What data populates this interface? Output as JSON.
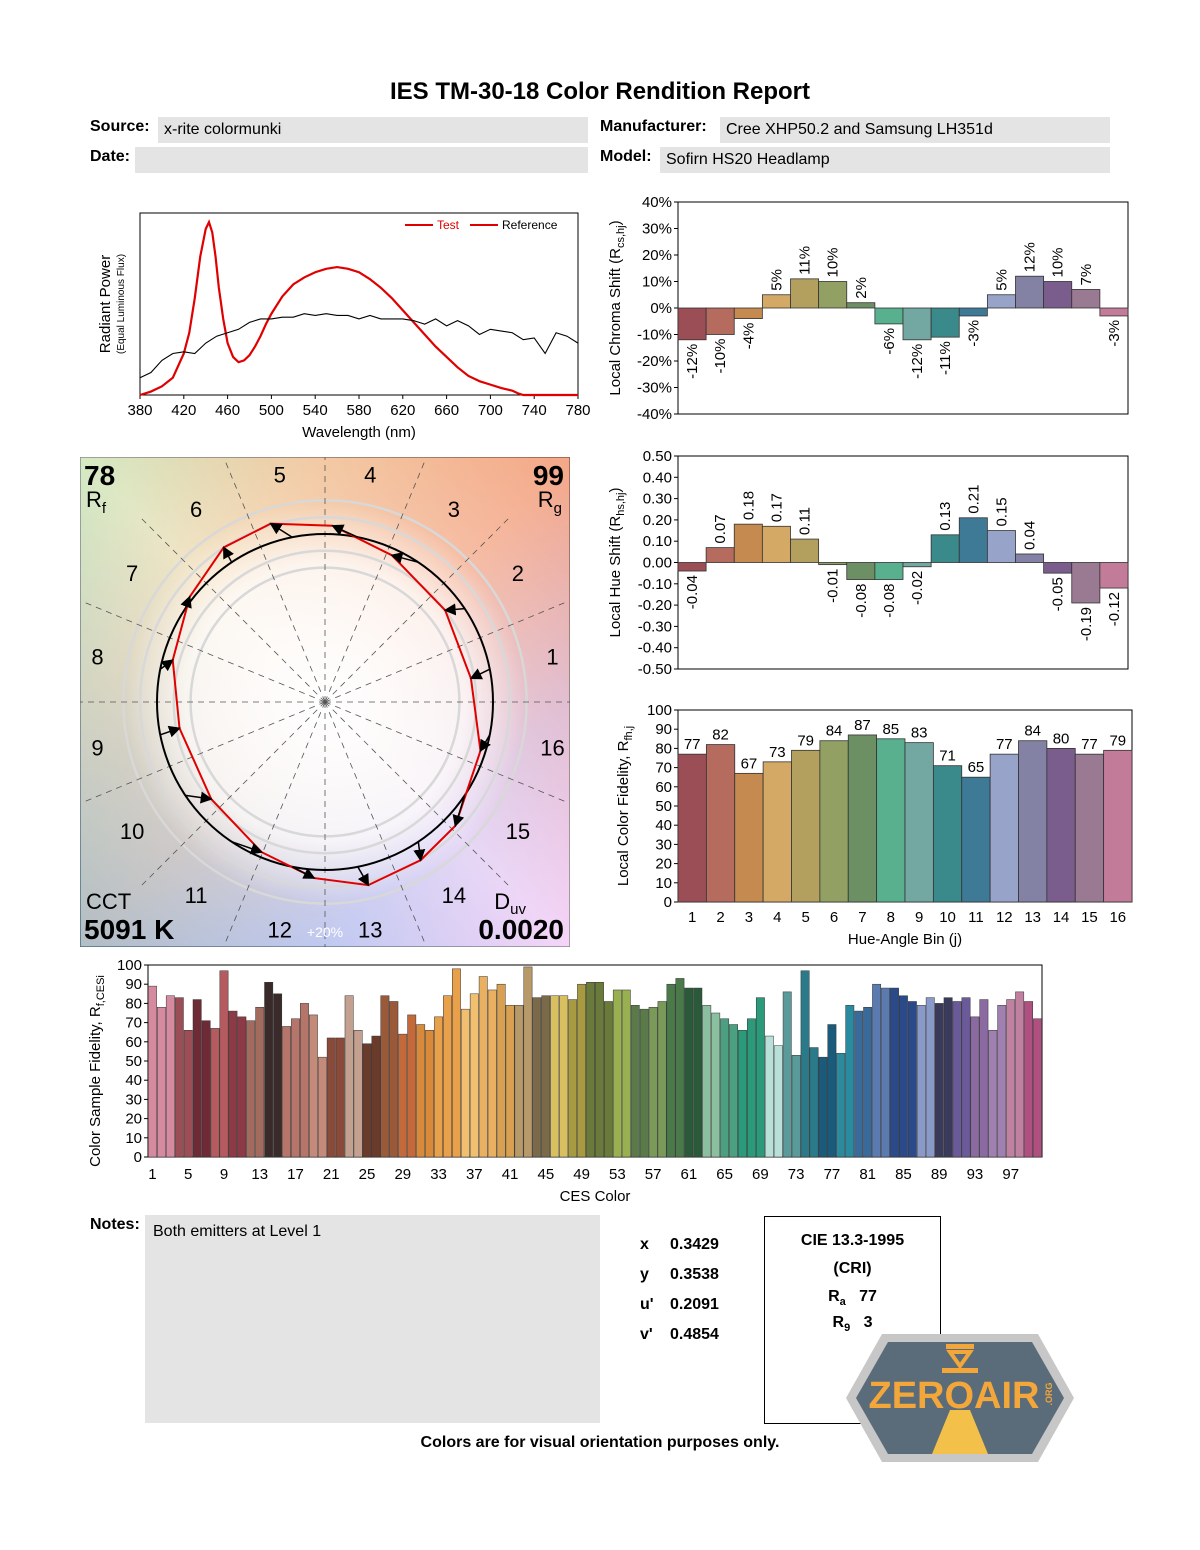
{
  "header": {
    "title": "IES TM-30-18 Color Rendition Report",
    "source_label": "Source:",
    "source": "x-rite colormunki",
    "date_label": "Date:",
    "date": "",
    "manufacturer_label": "Manufacturer:",
    "manufacturer": "Cree XHP50.2 and Samsung LH351d",
    "model_label": "Model:",
    "model": "Sofirn HS20 Headlamp"
  },
  "colors": {
    "test": "#e00000",
    "reference": "#000000",
    "bins": [
      "#9c4e57",
      "#b56b5e",
      "#c58a4f",
      "#d4a965",
      "#b4a05e",
      "#92a063",
      "#6c9063",
      "#58b08f",
      "#72a8a1",
      "#3a8a8c",
      "#3e7a96",
      "#97a3c8",
      "#8381a4",
      "#7a5d8c",
      "#9a7a92",
      "#c27b98"
    ]
  },
  "notes": {
    "label": "Notes:",
    "text": "Both emitters at Level 1"
  },
  "chromaticity": [
    {
      "label": "x",
      "value": "0.3429"
    },
    {
      "label": "y",
      "value": "0.3538"
    },
    {
      "label": "u'",
      "value": "0.2091"
    },
    {
      "label": "v'",
      "value": "0.4854"
    }
  ],
  "cri": {
    "title": "CIE 13.3-1995",
    "subtitle": "(CRI)",
    "ra_label": "R",
    "ra_sub": "a",
    "ra": "77",
    "r9_label": "R",
    "r9_sub": "9",
    "r9": "3"
  },
  "logo": {
    "text": "ZEROAIR",
    "tld": ".ORG"
  },
  "footer": "Colors are for visual orientation purposes only.",
  "chart_data": [
    {
      "type": "line",
      "id": "spectrum",
      "xlabel": "Wavelength (nm)",
      "ylabel": "Radiant Power",
      "ylabel_sub": "(Equal Luminous Flux)",
      "xlim": [
        380,
        780
      ],
      "xticks": [
        "380",
        "420",
        "460",
        "500",
        "540",
        "580",
        "620",
        "660",
        "700",
        "740",
        "780"
      ],
      "legend": "top-right",
      "series": [
        {
          "name": "Test",
          "color": "#e00000",
          "x": [
            380,
            390,
            400,
            410,
            420,
            425,
            430,
            435,
            440,
            443,
            446,
            449,
            452,
            456,
            460,
            465,
            470,
            475,
            480,
            485,
            490,
            495,
            500,
            510,
            520,
            530,
            540,
            550,
            560,
            570,
            580,
            590,
            600,
            610,
            620,
            630,
            640,
            650,
            660,
            670,
            680,
            690,
            700,
            710,
            720,
            725,
            730,
            740,
            750,
            760,
            770,
            780
          ],
          "y": [
            0,
            0.02,
            0.05,
            0.1,
            0.24,
            0.36,
            0.56,
            0.8,
            0.96,
            1.0,
            0.94,
            0.8,
            0.62,
            0.44,
            0.3,
            0.22,
            0.19,
            0.2,
            0.23,
            0.28,
            0.34,
            0.41,
            0.47,
            0.57,
            0.64,
            0.68,
            0.71,
            0.73,
            0.74,
            0.73,
            0.71,
            0.67,
            0.62,
            0.56,
            0.49,
            0.42,
            0.35,
            0.28,
            0.22,
            0.16,
            0.11,
            0.08,
            0.06,
            0.04,
            0.025,
            0.01,
            0,
            0,
            0,
            0,
            0,
            0
          ]
        },
        {
          "name": "Reference",
          "color": "#000000",
          "x": [
            380,
            390,
            400,
            410,
            420,
            430,
            440,
            450,
            460,
            470,
            480,
            490,
            500,
            510,
            520,
            530,
            540,
            550,
            560,
            570,
            580,
            590,
            600,
            610,
            620,
            630,
            640,
            650,
            660,
            670,
            680,
            690,
            700,
            710,
            720,
            730,
            740,
            750,
            760,
            770,
            780
          ],
          "y": [
            0.1,
            0.13,
            0.2,
            0.24,
            0.25,
            0.24,
            0.3,
            0.34,
            0.36,
            0.38,
            0.42,
            0.44,
            0.44,
            0.45,
            0.45,
            0.47,
            0.46,
            0.47,
            0.46,
            0.46,
            0.44,
            0.46,
            0.44,
            0.44,
            0.44,
            0.43,
            0.41,
            0.44,
            0.4,
            0.43,
            0.4,
            0.35,
            0.38,
            0.37,
            0.36,
            0.32,
            0.33,
            0.24,
            0.36,
            0.34,
            0.3
          ]
        }
      ]
    },
    {
      "type": "bar",
      "id": "chroma",
      "ylabel": "Local Chroma Shift (R",
      "ylabel_sub": "cs,hj",
      "ylim": [
        -40,
        40
      ],
      "yticks": [
        "-40%",
        "-30%",
        "-20%",
        "-10%",
        "0%",
        "10%",
        "20%",
        "30%",
        "40%"
      ],
      "categories": [
        "1",
        "2",
        "3",
        "4",
        "5",
        "6",
        "7",
        "8",
        "9",
        "10",
        "11",
        "12",
        "13",
        "14",
        "15",
        "16"
      ],
      "values": [
        -12,
        -10,
        -4,
        5,
        11,
        10,
        2,
        -6,
        -12,
        -11,
        -3,
        5,
        12,
        10,
        7,
        -3
      ],
      "labels": [
        "-12%",
        "-10%",
        "-4%",
        "5%",
        "11%",
        "10%",
        "2%",
        "-6%",
        "-12%",
        "-11%",
        "-3%",
        "5%",
        "12%",
        "10%",
        "7%",
        "-3%"
      ]
    },
    {
      "type": "bar",
      "id": "hue",
      "ylabel": "Local Hue Shift (R",
      "ylabel_sub": "hs,hj",
      "ylim": [
        -0.5,
        0.5
      ],
      "yticks": [
        "-0.50",
        "-0.40",
        "-0.30",
        "-0.20",
        "-0.10",
        "0.00",
        "0.10",
        "0.20",
        "0.30",
        "0.40",
        "0.50"
      ],
      "categories": [
        "1",
        "2",
        "3",
        "4",
        "5",
        "6",
        "7",
        "8",
        "9",
        "10",
        "11",
        "12",
        "13",
        "14",
        "15",
        "16"
      ],
      "values": [
        -0.04,
        0.07,
        0.18,
        0.17,
        0.11,
        -0.01,
        -0.08,
        -0.08,
        -0.02,
        0.13,
        0.21,
        0.15,
        0.04,
        -0.05,
        -0.19,
        -0.12
      ],
      "labels": [
        "-0.04",
        "0.07",
        "0.18",
        "0.17",
        "0.11",
        "-0.01",
        "-0.08",
        "-0.08",
        "-0.02",
        "0.13",
        "0.21",
        "0.15",
        "0.04",
        "-0.05",
        "-0.19",
        "-0.12"
      ]
    },
    {
      "type": "bar",
      "id": "fidelity",
      "xlabel": "Hue-Angle Bin (j)",
      "ylabel": "Local Color Fidelity, R",
      "ylabel_sub": "fh,j",
      "ylim": [
        0,
        100
      ],
      "yticks": [
        "0",
        "10",
        "20",
        "30",
        "40",
        "50",
        "60",
        "70",
        "80",
        "90",
        "100"
      ],
      "categories": [
        "1",
        "2",
        "3",
        "4",
        "5",
        "6",
        "7",
        "8",
        "9",
        "10",
        "11",
        "12",
        "13",
        "14",
        "15",
        "16"
      ],
      "values": [
        77,
        82,
        67,
        73,
        79,
        84,
        87,
        85,
        83,
        71,
        65,
        77,
        84,
        80,
        77,
        79
      ]
    },
    {
      "type": "bar",
      "id": "ces",
      "xlabel": "CES Color",
      "ylabel": "Color Sample Fidelity, R",
      "ylabel_sub": "f,CESi",
      "ylim": [
        0,
        100
      ],
      "yticks": [
        "0",
        "10",
        "20",
        "30",
        "40",
        "50",
        "60",
        "70",
        "80",
        "90",
        "100"
      ],
      "xticks": [
        "1",
        "5",
        "9",
        "13",
        "17",
        "21",
        "25",
        "29",
        "33",
        "37",
        "41",
        "45",
        "49",
        "53",
        "57",
        "61",
        "65",
        "69",
        "73",
        "77",
        "81",
        "85",
        "89",
        "93",
        "97"
      ],
      "values": [
        89,
        78,
        84,
        83,
        66,
        82,
        71,
        67,
        97,
        76,
        73,
        71,
        78,
        91,
        85,
        68,
        72,
        80,
        74,
        52,
        62,
        62,
        84,
        66,
        59,
        63,
        84,
        81,
        64,
        74,
        69,
        66,
        73,
        84,
        98,
        77,
        85,
        94,
        87,
        90,
        79,
        79,
        99,
        83,
        84,
        84,
        84,
        82,
        90,
        91,
        91,
        81,
        87,
        87,
        79,
        77,
        78,
        81,
        90,
        93,
        88,
        88,
        79,
        75,
        72,
        69,
        66,
        72,
        83,
        63,
        58,
        86,
        53,
        97,
        57,
        52,
        69,
        54,
        79,
        76,
        78,
        90,
        88,
        88,
        84,
        81,
        79,
        83,
        80,
        83,
        81,
        83,
        73,
        82,
        66,
        79,
        82,
        86,
        81,
        72
      ]
    },
    {
      "type": "scatter",
      "id": "vector-graphic",
      "values": {
        "rf": "78",
        "rf_label": "R",
        "rf_sub": "f",
        "rg": "99",
        "rg_label": "R",
        "rg_sub": "g",
        "cct_label": "CCT",
        "cct": "5091 K",
        "duv_label": "D",
        "duv_sub": "uv",
        "duv": "0.0020",
        "scale_label": "+20%"
      },
      "bins": [
        "1",
        "2",
        "3",
        "4",
        "5",
        "6",
        "7",
        "8",
        "9",
        "10",
        "11",
        "12",
        "13",
        "14",
        "15",
        "16"
      ],
      "chroma_shift": [
        -0.12,
        -0.1,
        -0.04,
        0.05,
        0.11,
        0.1,
        0.02,
        -0.06,
        -0.12,
        -0.11,
        -0.03,
        0.05,
        0.12,
        0.1,
        0.07,
        -0.03
      ],
      "hue_shift": [
        -0.04,
        0.07,
        0.18,
        0.17,
        0.11,
        -0.01,
        -0.08,
        -0.08,
        -0.02,
        0.13,
        0.21,
        0.15,
        0.04,
        -0.05,
        -0.19,
        -0.12
      ]
    }
  ]
}
